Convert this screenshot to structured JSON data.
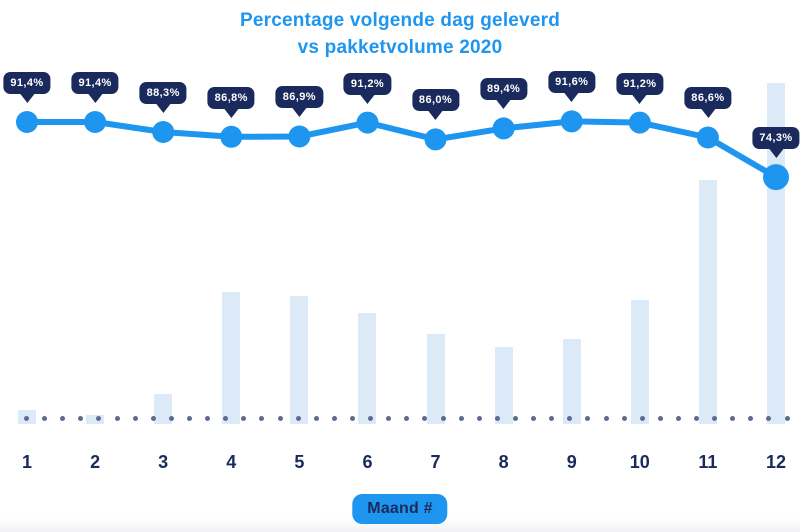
{
  "title": {
    "line1": "Percentage volgende dag geleverd",
    "line2": "vs pakketvolume 2020"
  },
  "colors": {
    "accent_blue": "#1E96F0",
    "navy": "#1B2A5C",
    "bar_fill": "#DCEAF8",
    "baseline_dot": "#5C6B8F",
    "badge_text": "#FFFFFF",
    "background": "#FFFFFF"
  },
  "chart_data": {
    "type": "line+bar",
    "title": "Percentage volgende dag geleverd vs pakketvolume 2020",
    "xlabel": "Maand #",
    "x_ticks": [
      "1",
      "2",
      "3",
      "4",
      "5",
      "6",
      "7",
      "8",
      "9",
      "10",
      "11",
      "12"
    ],
    "grid": false,
    "legend": "none",
    "series": [
      {
        "name": "Percentage volgende dag geleverd",
        "type": "line",
        "unit": "%",
        "color": "#1E96F0",
        "values": [
          91.4,
          91.4,
          88.3,
          86.8,
          86.9,
          91.2,
          86.0,
          89.4,
          91.6,
          91.2,
          86.6,
          74.3
        ],
        "labels": [
          "91,4%",
          "91,4%",
          "88,3%",
          "86,8%",
          "86,9%",
          "91,2%",
          "86,0%",
          "89,4%",
          "91,6%",
          "91,2%",
          "86,6%",
          "74,3%"
        ]
      },
      {
        "name": "Pakketvolume 2020",
        "type": "bar",
        "unit": "relative, % of max (december = 100)",
        "color": "#DCEAF8",
        "values": [
          4.1,
          2.6,
          8.8,
          38.7,
          37.5,
          32.6,
          26.4,
          22.6,
          24.9,
          36.4,
          71.6,
          100
        ]
      }
    ],
    "baseline_dot_count": 43
  }
}
